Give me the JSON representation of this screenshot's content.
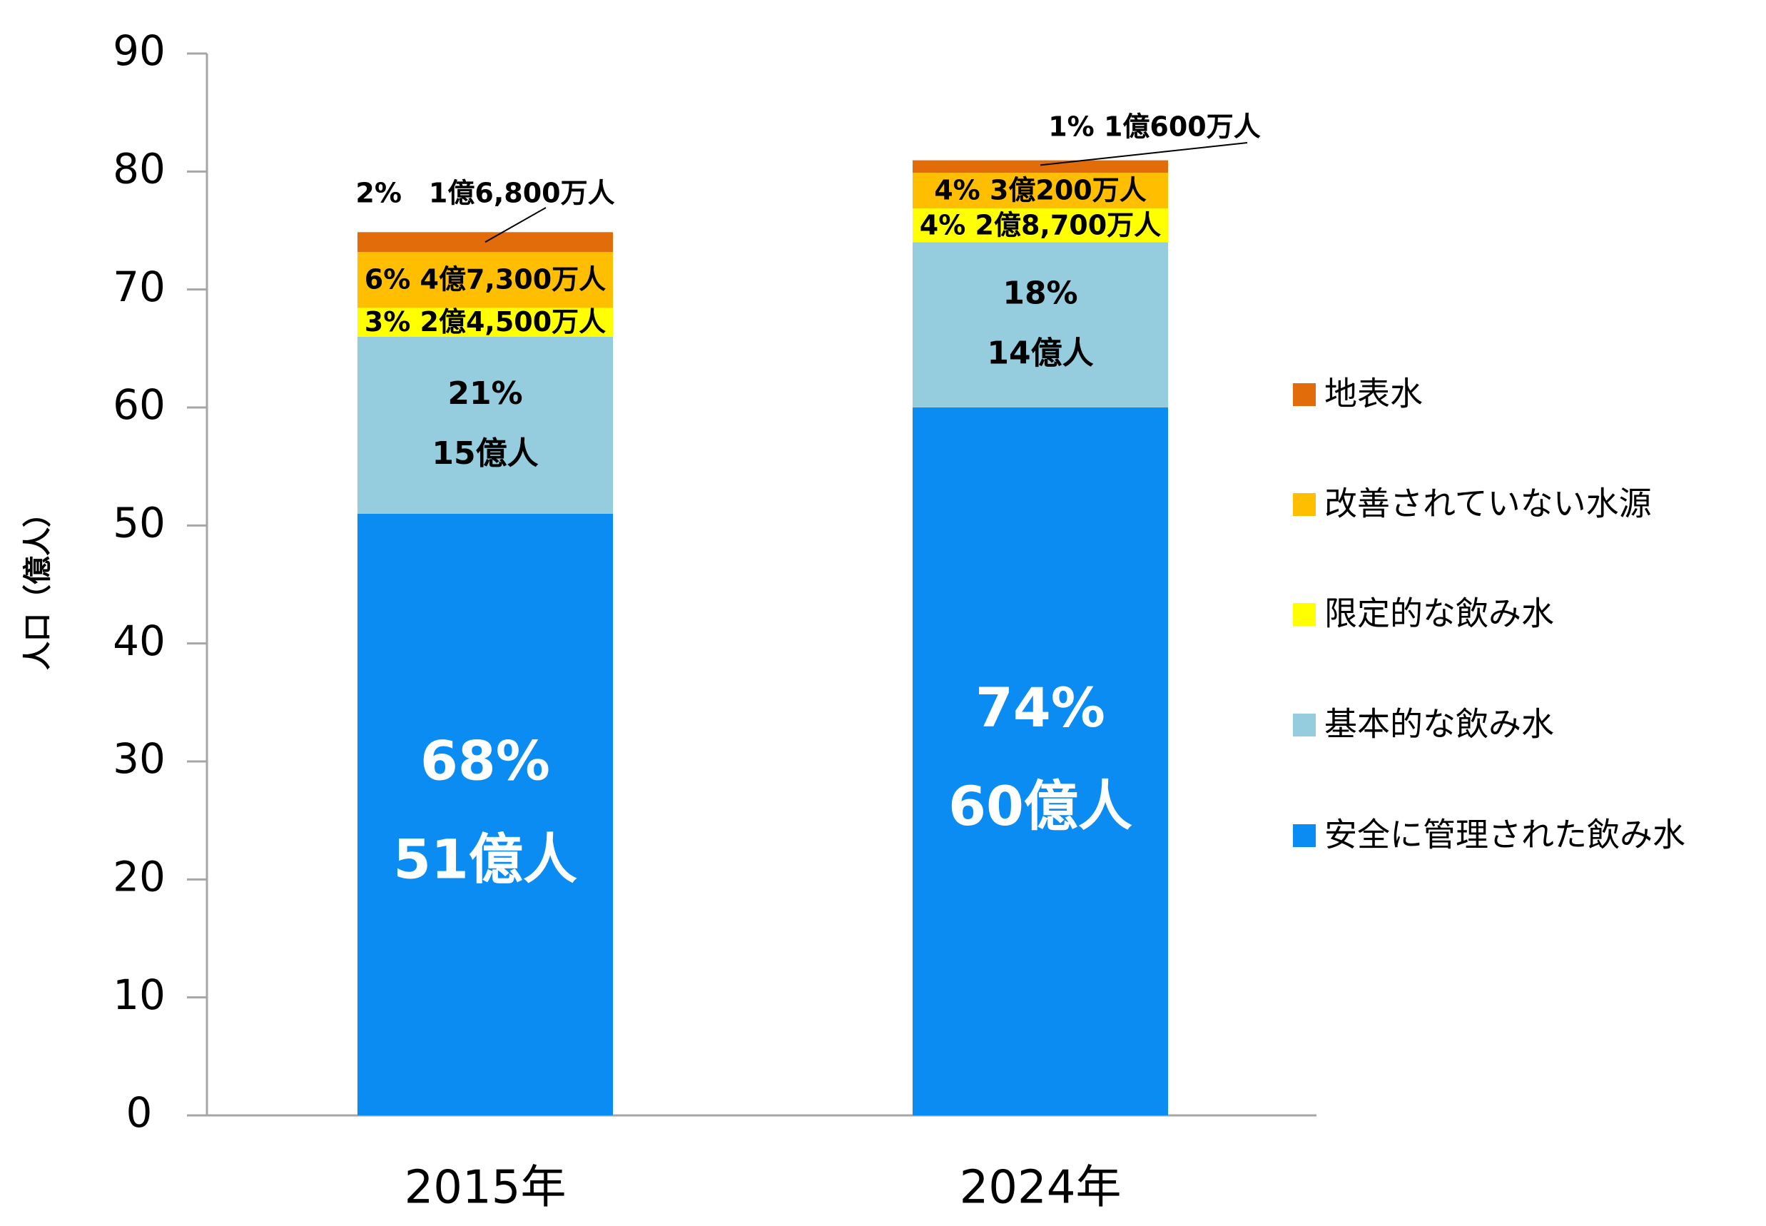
{
  "chart_data": {
    "type": "bar",
    "stacked": true,
    "title": "",
    "xlabel": "",
    "ylabel": "人口（億人）",
    "ylim": [
      0,
      90
    ],
    "yticks": [
      0,
      10,
      20,
      30,
      40,
      50,
      60,
      70,
      80,
      90
    ],
    "categories": [
      "2015年",
      "2024年"
    ],
    "series": [
      {
        "name": "安全に管理された飲み水",
        "color": "#0A8CF2",
        "values": [
          51,
          60
        ],
        "labels": [
          [
            "68%",
            "51億人"
          ],
          [
            "74%",
            "60億人"
          ]
        ]
      },
      {
        "name": "基本的な飲み水",
        "color": "#96CDDE",
        "values": [
          15,
          14
        ],
        "labels": [
          [
            "21%",
            "15億人"
          ],
          [
            "18%",
            "14億人"
          ]
        ]
      },
      {
        "name": "限定的な飲み水",
        "color": "#FFFF00",
        "values": [
          2.45,
          2.87
        ],
        "labels": [
          [
            "3% 2億4,500万人"
          ],
          [
            "4% 2億8,700万人"
          ]
        ]
      },
      {
        "name": "改善されていない水源",
        "color": "#FFBF00",
        "values": [
          4.73,
          3.02
        ],
        "labels": [
          [
            "6% 4億7,300万人"
          ],
          [
            "4% 3億200万人"
          ]
        ]
      },
      {
        "name": "地表水",
        "color": "#E36C0A",
        "values": [
          1.68,
          1.06
        ],
        "labels": [
          [
            "2%　1億6,800万人"
          ],
          [
            "1%  1億600万人"
          ]
        ]
      }
    ],
    "legend_position": "right",
    "legend_order": [
      "地表水",
      "改善されていない水源",
      "限定的な飲み水",
      "基本的な飲み水",
      "安全に管理された飲み水"
    ]
  }
}
